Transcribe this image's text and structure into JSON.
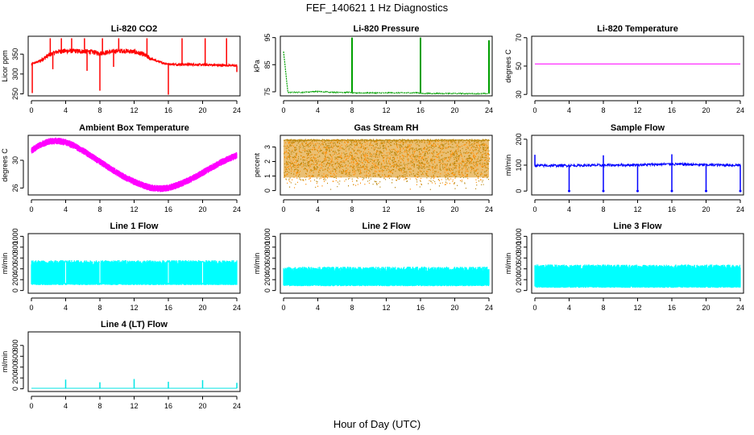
{
  "figure": {
    "title": "FEF_140621  1 Hz Diagnostics",
    "xlabel": "Hour of Day (UTC)"
  },
  "chart_data": [
    {
      "type": "line",
      "title": "Li-820 CO2",
      "ylabel": "Licor ppm",
      "color": "#ff0000",
      "xlim": [
        0,
        24
      ],
      "ylim": [
        245,
        395
      ],
      "xticks": [
        0,
        4,
        8,
        12,
        16,
        20,
        24
      ],
      "yticks": [
        250,
        300,
        350
      ],
      "series": [
        {
          "x": [
            0,
            1,
            2,
            3,
            4,
            5,
            6,
            7,
            8,
            9,
            10,
            11,
            12,
            13,
            14,
            15,
            16,
            17,
            18,
            19,
            20,
            21,
            22,
            23,
            24
          ],
          "values": [
            325,
            333,
            347,
            356,
            358,
            358,
            357,
            356,
            352,
            355,
            358,
            358,
            356,
            350,
            338,
            330,
            325,
            324,
            324,
            324,
            323,
            323,
            322,
            322,
            321
          ]
        }
      ],
      "spikes_up": [
        [
          2.2,
          390
        ],
        [
          3.5,
          390
        ],
        [
          4.7,
          390
        ],
        [
          6.2,
          390
        ],
        [
          8.3,
          390
        ],
        [
          10.2,
          390
        ],
        [
          13.5,
          390
        ],
        [
          17.6,
          390
        ],
        [
          20.3,
          390
        ],
        [
          22.8,
          390
        ]
      ],
      "spikes_down": [
        [
          0.1,
          252
        ],
        [
          8.0,
          258
        ],
        [
          16.0,
          248
        ],
        [
          6.5,
          308
        ],
        [
          2.5,
          312
        ],
        [
          9.6,
          318
        ],
        [
          22.3,
          318
        ],
        [
          24.0,
          305
        ]
      ]
    },
    {
      "type": "line",
      "title": "Li-820 Pressure",
      "ylabel": "kPa",
      "color": "#00a000",
      "xlim": [
        0,
        24
      ],
      "ylim": [
        73.5,
        95.5
      ],
      "xticks": [
        0,
        4,
        8,
        12,
        16,
        20,
        24
      ],
      "yticks": [
        75,
        85,
        95
      ],
      "series": [
        {
          "x": [
            0,
            0.5,
            2,
            4,
            6,
            7.9,
            8.1,
            10,
            12,
            14,
            15.9,
            16.1,
            18,
            20,
            22,
            23.9
          ],
          "values": [
            90,
            74.8,
            74.8,
            75.1,
            74.8,
            74.8,
            74.6,
            74.6,
            74.6,
            74.6,
            74.6,
            74.4,
            74.4,
            74.4,
            74.3,
            74.3
          ]
        }
      ],
      "spikes_up": [
        [
          8.0,
          95
        ],
        [
          16.0,
          95
        ],
        [
          24.0,
          94
        ]
      ],
      "spikes_down": []
    },
    {
      "type": "line",
      "title": "Li-820 Temperature",
      "ylabel": "degrees C",
      "color": "#ff00ff",
      "xlim": [
        0,
        24
      ],
      "ylim": [
        29,
        71
      ],
      "xticks": [
        0,
        4,
        8,
        12,
        16,
        20,
        24
      ],
      "yticks": [
        30,
        50,
        70
      ],
      "series": [
        {
          "x": [
            0,
            24
          ],
          "values": [
            51.5,
            51.5
          ]
        }
      ],
      "spikes_up": [],
      "spikes_down": []
    },
    {
      "type": "line",
      "title": "Ambient Box Temperature",
      "ylabel": "degrees C",
      "color": "#ff00ff",
      "xlim": [
        0,
        24
      ],
      "ylim": [
        25,
        33.6
      ],
      "xticks": [
        0,
        4,
        8,
        12,
        16,
        20,
        24
      ],
      "yticks": [
        26,
        30
      ],
      "band_width": 1.0,
      "series": [
        {
          "x": [
            0,
            1,
            2,
            3,
            4,
            5,
            6,
            7,
            8,
            9,
            10,
            11,
            12,
            13,
            14,
            15,
            16,
            17,
            18,
            19,
            20,
            21,
            22,
            23,
            24
          ],
          "values": [
            31.4,
            32.2,
            32.7,
            32.8,
            32.6,
            32.1,
            31.4,
            30.6,
            29.8,
            29.0,
            28.2,
            27.5,
            26.9,
            26.4,
            26.0,
            25.9,
            26.0,
            26.4,
            26.9,
            27.5,
            28.2,
            28.9,
            29.6,
            30.2,
            30.7
          ]
        }
      ],
      "spikes_up": [],
      "spikes_down": []
    },
    {
      "type": "scatter",
      "title": "Gas Stream RH",
      "ylabel": "percent",
      "color": "#ff8c00",
      "color2": "#b8860b",
      "xlim": [
        0,
        24
      ],
      "ylim": [
        -0.3,
        3.8
      ],
      "xticks": [
        0,
        4,
        8,
        12,
        16,
        20,
        24
      ],
      "yticks": [
        0,
        1,
        2,
        3
      ],
      "band": [
        0.3,
        3.5
      ],
      "series": [
        {
          "x": [
            0,
            24
          ],
          "values": [
            0.3,
            3.5
          ]
        }
      ],
      "spikes_up": [],
      "spikes_down": []
    },
    {
      "type": "line",
      "title": "Sample Flow",
      "ylabel": "ml/min",
      "color": "#0000ff",
      "xlim": [
        0,
        24
      ],
      "ylim": [
        -15,
        215
      ],
      "xticks": [
        0,
        4,
        8,
        12,
        16,
        20,
        24
      ],
      "yticks": [
        0,
        100,
        200
      ],
      "series": [
        {
          "x": [
            0,
            6,
            12,
            16,
            20,
            24
          ],
          "values": [
            98,
            99,
            101,
            104,
            101,
            100
          ]
        }
      ],
      "spikes_up": [
        [
          0.0,
          140
        ],
        [
          8.0,
          138
        ],
        [
          16.0,
          142
        ]
      ],
      "spikes_down": [
        [
          4.0,
          0
        ],
        [
          8.0,
          0
        ],
        [
          12.0,
          0
        ],
        [
          16.0,
          0
        ],
        [
          20.0,
          0
        ],
        [
          24.0,
          0
        ]
      ]
    },
    {
      "type": "area",
      "title": "Line 1 Flow",
      "ylabel": "ml/min",
      "color": "#00ffff",
      "xlim": [
        0,
        24
      ],
      "ylim": [
        -50,
        1050
      ],
      "xticks": [
        0,
        4,
        8,
        12,
        16,
        20,
        24
      ],
      "yticks": [
        0,
        200,
        400,
        600,
        800,
        1000
      ],
      "band": [
        100,
        560
      ],
      "series": [
        {
          "x": [
            0,
            24
          ],
          "values": [
            100,
            560
          ]
        }
      ],
      "spikes_up": [],
      "spikes_down": []
    },
    {
      "type": "area",
      "title": "Line 2 Flow",
      "ylabel": "ml/min",
      "color": "#00ffff",
      "xlim": [
        0,
        24
      ],
      "ylim": [
        -50,
        1050
      ],
      "xticks": [
        0,
        4,
        8,
        12,
        16,
        20,
        24
      ],
      "yticks": [
        0,
        200,
        400,
        600,
        800,
        1000
      ],
      "band": [
        80,
        440
      ],
      "series": [
        {
          "x": [
            0,
            24
          ],
          "values": [
            80,
            440
          ]
        }
      ],
      "spikes_up": [],
      "spikes_down": []
    },
    {
      "type": "area",
      "title": "Line 3 Flow",
      "ylabel": "ml/min",
      "color": "#00ffff",
      "xlim": [
        0,
        24
      ],
      "ylim": [
        -50,
        1050
      ],
      "xticks": [
        0,
        4,
        8,
        12,
        16,
        20,
        24
      ],
      "yticks": [
        0,
        200,
        400,
        600,
        800,
        1000
      ],
      "band": [
        50,
        480
      ],
      "series": [
        {
          "x": [
            0,
            24
          ],
          "values": [
            50,
            480
          ]
        }
      ],
      "spikes_up": [],
      "spikes_down": []
    },
    {
      "type": "line",
      "title": "Line 4 (LT) Flow",
      "ylabel": "ml/min",
      "color": "#00e5e5",
      "xlim": [
        0,
        24
      ],
      "ylim": [
        -50,
        1050
      ],
      "xticks": [
        0,
        4,
        8,
        12,
        16,
        20,
        24
      ],
      "yticks": [
        0,
        200,
        400,
        600,
        800
      ],
      "series": [
        {
          "x": [
            0,
            24
          ],
          "values": [
            10,
            10
          ]
        }
      ],
      "spikes_up": [
        [
          4.0,
          170
        ],
        [
          8.0,
          120
        ],
        [
          12.0,
          180
        ],
        [
          16.0,
          130
        ],
        [
          20.0,
          160
        ],
        [
          24.0,
          110
        ]
      ],
      "spikes_down": []
    }
  ]
}
